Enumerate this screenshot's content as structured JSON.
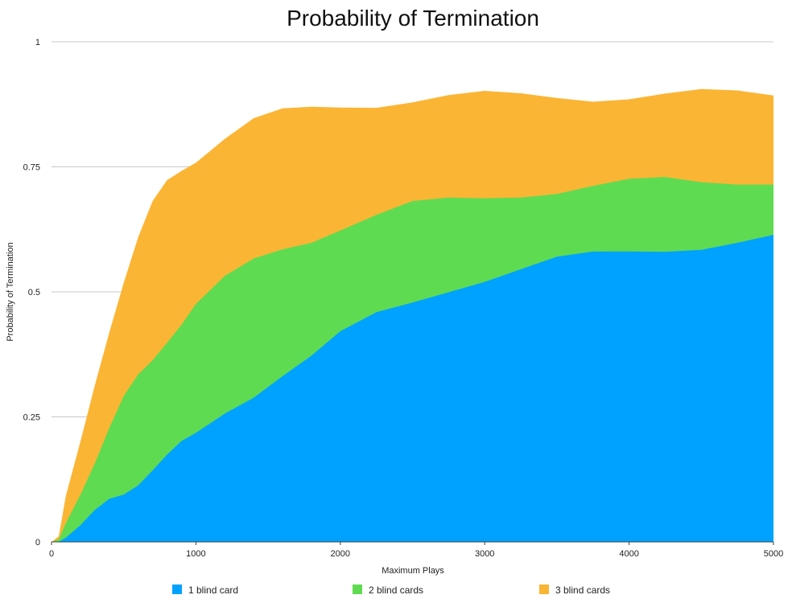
{
  "chart_data": {
    "type": "area",
    "stacked": false,
    "title": "Probability of Termination",
    "xlabel": "Maximum Plays",
    "ylabel": "Probability of Termination",
    "xlim": [
      0,
      5000
    ],
    "ylim": [
      0,
      1
    ],
    "x_ticks": [
      "0",
      "1000",
      "2000",
      "3000",
      "4000",
      "5000"
    ],
    "y_ticks": [
      "0",
      "0.25",
      "0.5",
      "0.75",
      "1"
    ],
    "grid": true,
    "legend_position": "bottom",
    "x": [
      0,
      50,
      100,
      200,
      300,
      400,
      500,
      600,
      700,
      800,
      900,
      1000,
      1200,
      1400,
      1600,
      1800,
      2000,
      2250,
      2500,
      2750,
      3000,
      3250,
      3500,
      3750,
      4000,
      4250,
      4500,
      4750,
      5000
    ],
    "series": [
      {
        "name": "3 blind cards",
        "color": "#fbb534",
        "values": [
          0,
          0.01,
          0.09,
          0.2,
          0.32,
          0.43,
          0.52,
          0.6,
          0.67,
          0.72,
          0.75,
          0.77,
          0.81,
          0.84,
          0.855,
          0.865,
          0.875,
          0.88,
          0.885,
          0.888,
          0.89,
          0.89,
          0.892,
          0.892,
          0.893,
          0.893,
          0.894,
          0.894,
          0.895
        ]
      },
      {
        "name": "2 blind cards",
        "color": "#5fdb52",
        "values": [
          0,
          0.005,
          0.04,
          0.1,
          0.16,
          0.22,
          0.28,
          0.33,
          0.37,
          0.41,
          0.44,
          0.47,
          0.52,
          0.56,
          0.59,
          0.61,
          0.63,
          0.65,
          0.67,
          0.68,
          0.69,
          0.7,
          0.705,
          0.71,
          0.715,
          0.72,
          0.72,
          0.725,
          0.725
        ]
      },
      {
        "name": "1 blind card",
        "color": "#00a2ff",
        "values": [
          0,
          0.002,
          0.01,
          0.03,
          0.055,
          0.08,
          0.1,
          0.125,
          0.15,
          0.17,
          0.19,
          0.21,
          0.26,
          0.3,
          0.34,
          0.37,
          0.41,
          0.45,
          0.48,
          0.51,
          0.53,
          0.545,
          0.56,
          0.57,
          0.58,
          0.59,
          0.595,
          0.6,
          0.605
        ]
      }
    ]
  },
  "legend": {
    "items": [
      {
        "label": "1 blind card",
        "color": "#00a2ff"
      },
      {
        "label": "2 blind cards",
        "color": "#5fdb52"
      },
      {
        "label": "3 blind cards",
        "color": "#fbb534"
      }
    ]
  }
}
